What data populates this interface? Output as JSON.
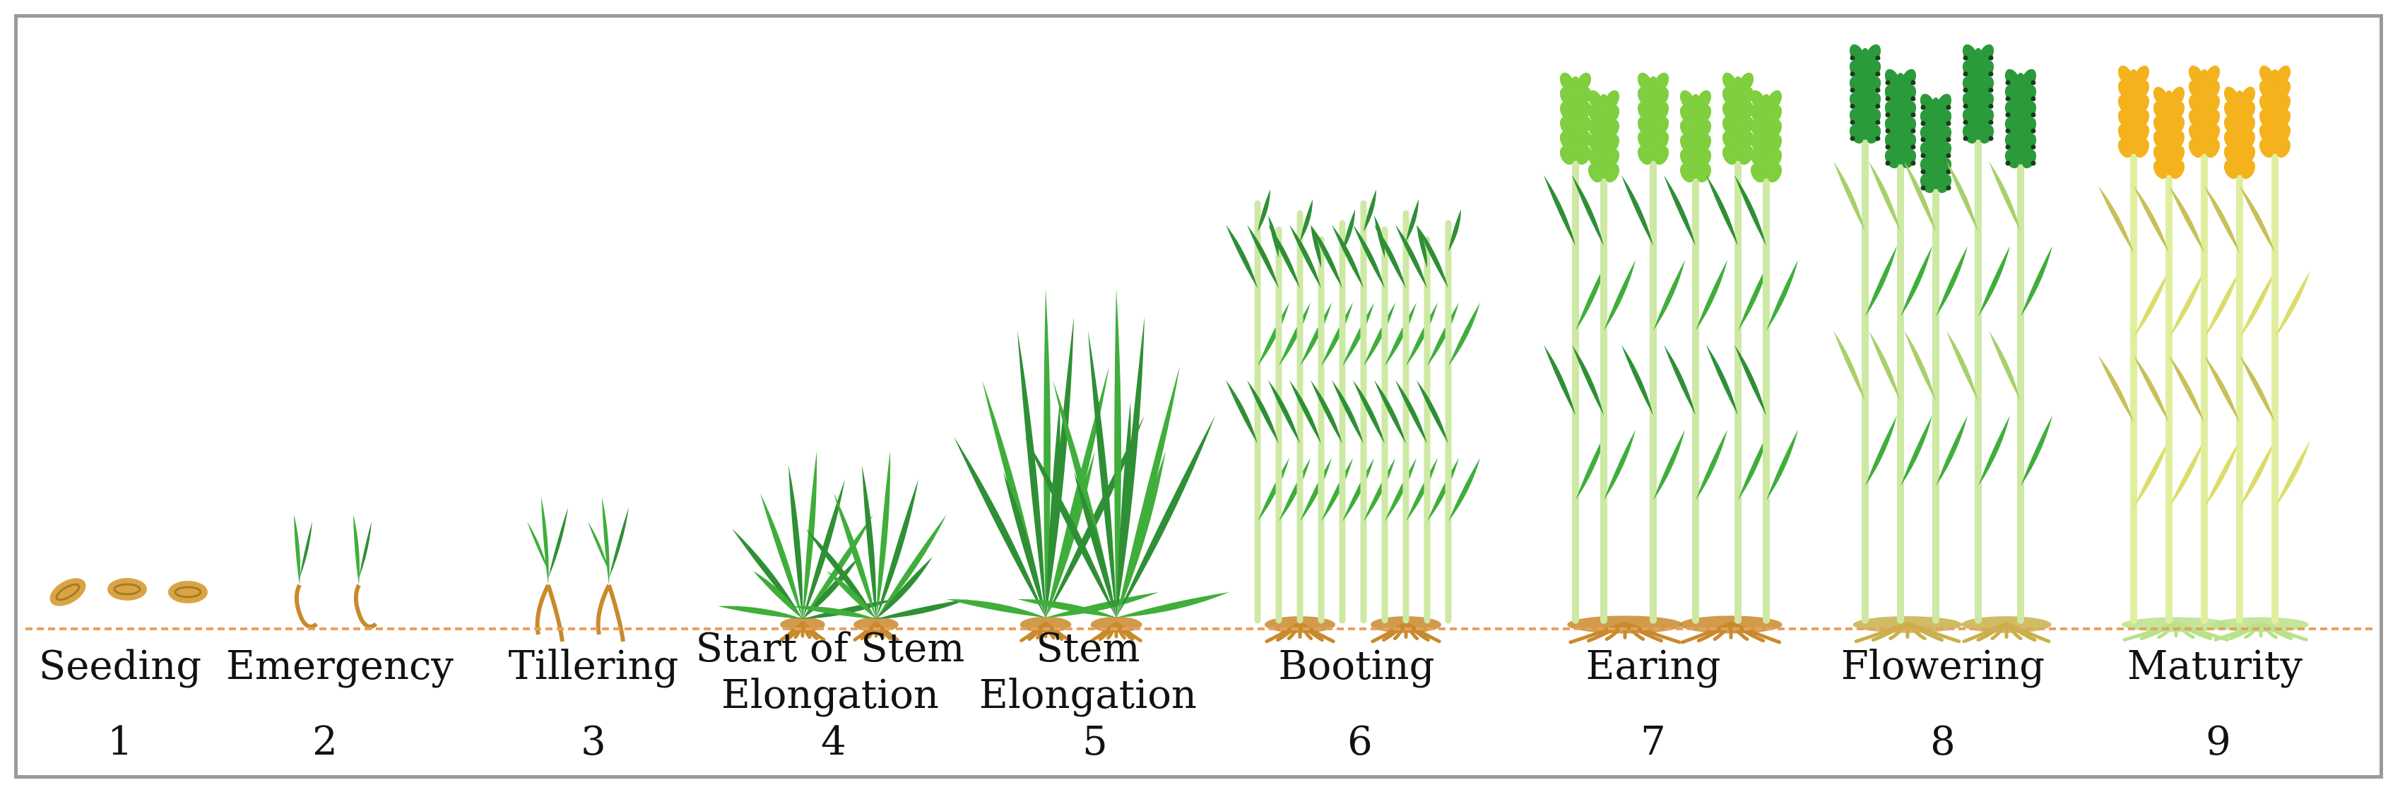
{
  "stages": [
    {
      "name": "Seeding",
      "number": "1"
    },
    {
      "name": "Emergency",
      "number": "2"
    },
    {
      "name": "Tillering",
      "number": "3"
    },
    {
      "name": "Start of Stem\nElongation",
      "number": "4"
    },
    {
      "name": "Stem\nElongation",
      "number": "5"
    },
    {
      "name": "Booting",
      "number": "6"
    },
    {
      "name": "Earing",
      "number": "7"
    },
    {
      "name": "Flowering",
      "number": "8"
    },
    {
      "name": "Maturity",
      "number": "9"
    }
  ],
  "colors": {
    "frame": "#9a9a9a",
    "ground_line": "#e8a060",
    "seed": "#d9a544",
    "root": "#c98a2c",
    "leaf_green": "#3fae3a",
    "leaf_dark": "#2f8f35",
    "stem_light": "#cde9a4",
    "ear_light": "#7fcf3e",
    "ear_flower": "#2a9a3a",
    "ear_mature": "#f4b21c",
    "mature_leaf": "#c8c05a"
  }
}
